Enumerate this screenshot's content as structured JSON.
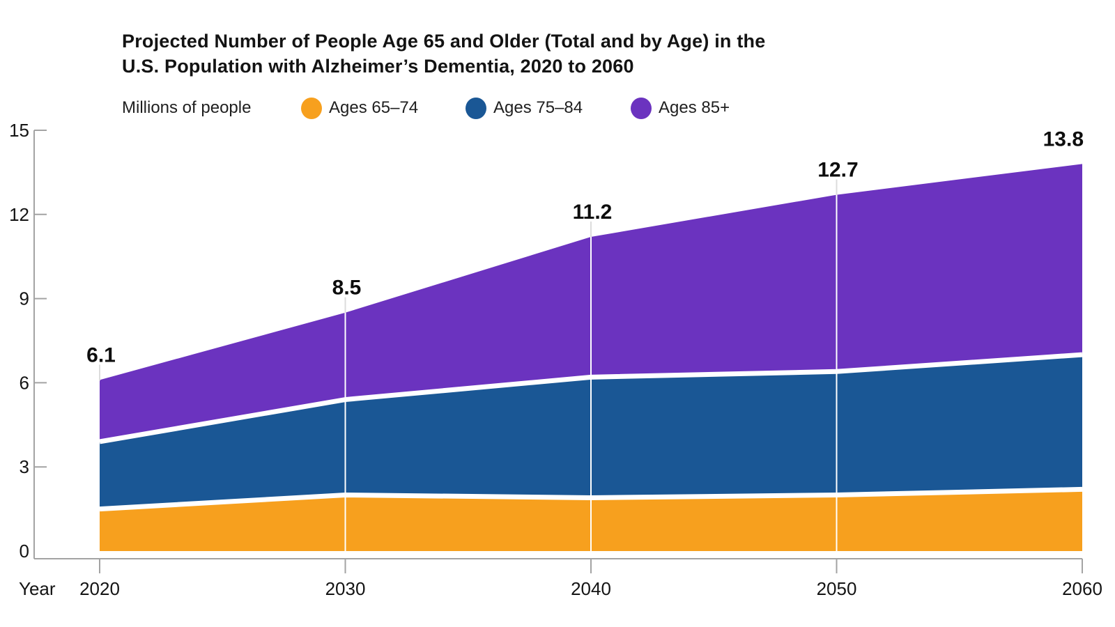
{
  "title": {
    "line1": "Projected Number of People Age 65 and Older (Total and by Age) in the",
    "line2": "U.S. Population with Alzheimer’s Dementia, 2020 to 2060"
  },
  "legend": {
    "axis_note": "Millions of people",
    "items": [
      {
        "label": "Ages 65–74",
        "color": "#F7A01E"
      },
      {
        "label": "Ages 75–84",
        "color": "#1A5795"
      },
      {
        "label": "Ages 85+",
        "color": "#6B33BF"
      }
    ]
  },
  "axes": {
    "x_title": "Year",
    "y_ticks": [
      "0",
      "3",
      "6",
      "9",
      "12",
      "15"
    ],
    "x_ticks": [
      "2020",
      "2030",
      "2040",
      "2050",
      "2060"
    ]
  },
  "chart_data": {
    "type": "area",
    "stacked": true,
    "title": "Projected Number of People Age 65 and Older (Total and by Age) in the U.S. Population with Alzheimer’s Dementia, 2020 to 2060",
    "ylabel": "Millions of people",
    "xlabel": "Year",
    "x": [
      2020,
      2030,
      2040,
      2050,
      2060
    ],
    "series": [
      {
        "name": "Ages 65–74",
        "color": "#F7A01E",
        "values": [
          1.5,
          2.0,
          1.9,
          2.0,
          2.2
        ]
      },
      {
        "name": "Ages 75–84",
        "color": "#1A5795",
        "values": [
          2.4,
          3.4,
          4.3,
          4.4,
          4.8
        ]
      },
      {
        "name": "Ages 85+",
        "color": "#6B33BF",
        "values": [
          2.2,
          3.1,
          5.0,
          6.3,
          6.8
        ]
      }
    ],
    "totals": [
      6.1,
      8.5,
      11.2,
      12.7,
      13.8
    ],
    "total_labels": [
      "6.1",
      "8.5",
      "11.2",
      "12.7",
      "13.8"
    ],
    "ylim": [
      0,
      15
    ],
    "yticks": [
      0,
      3,
      6,
      9,
      12,
      15
    ],
    "grid": "white vertical lines at interior decades",
    "legend_position": "top",
    "colors": {
      "axis": "#A3A3A3",
      "text": "#141414",
      "label": "#0d0d0d",
      "grid_stub": "#DCDCDC",
      "separator": "#FFFFFF"
    }
  }
}
